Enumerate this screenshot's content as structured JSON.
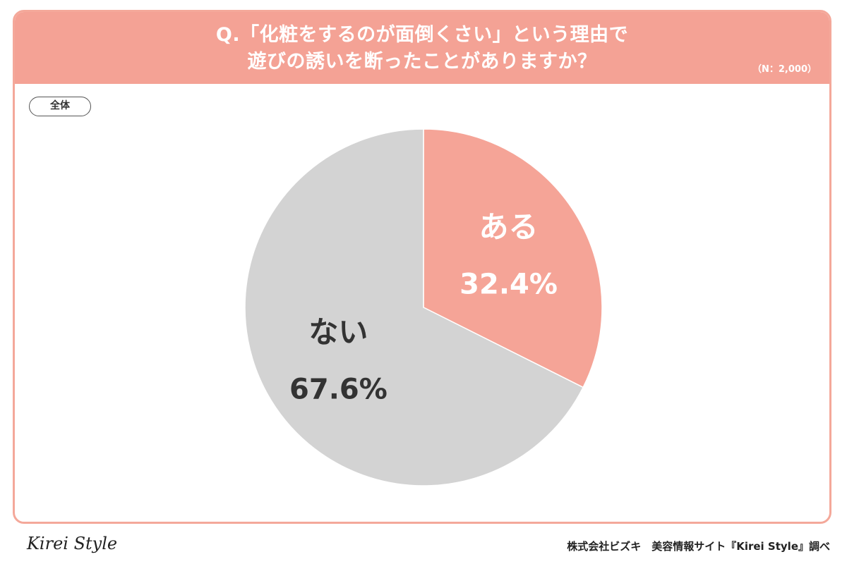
{
  "header": {
    "question_line1": "Q.「化粧をするのが面倒くさい」という理由で",
    "question_line2": "遊びの誘いを断ったことがありますか？",
    "sample_size": "（N：2,000）"
  },
  "segment_badge": "全体",
  "chart_data": {
    "type": "pie",
    "slices": [
      {
        "label": "ある",
        "value": 32.4,
        "display": "32.4%",
        "color": "#f5a497",
        "text_color": "#ffffff"
      },
      {
        "label": "ない",
        "value": 67.6,
        "display": "67.6%",
        "color": "#d3d3d3",
        "text_color": "#333333"
      }
    ],
    "start": "12 o'clock",
    "direction": "clockwise"
  },
  "footer": {
    "logo": "Kirei Style",
    "credit": "株式会社ビズキ　美容情報サイト『Kirei Style』調べ"
  }
}
